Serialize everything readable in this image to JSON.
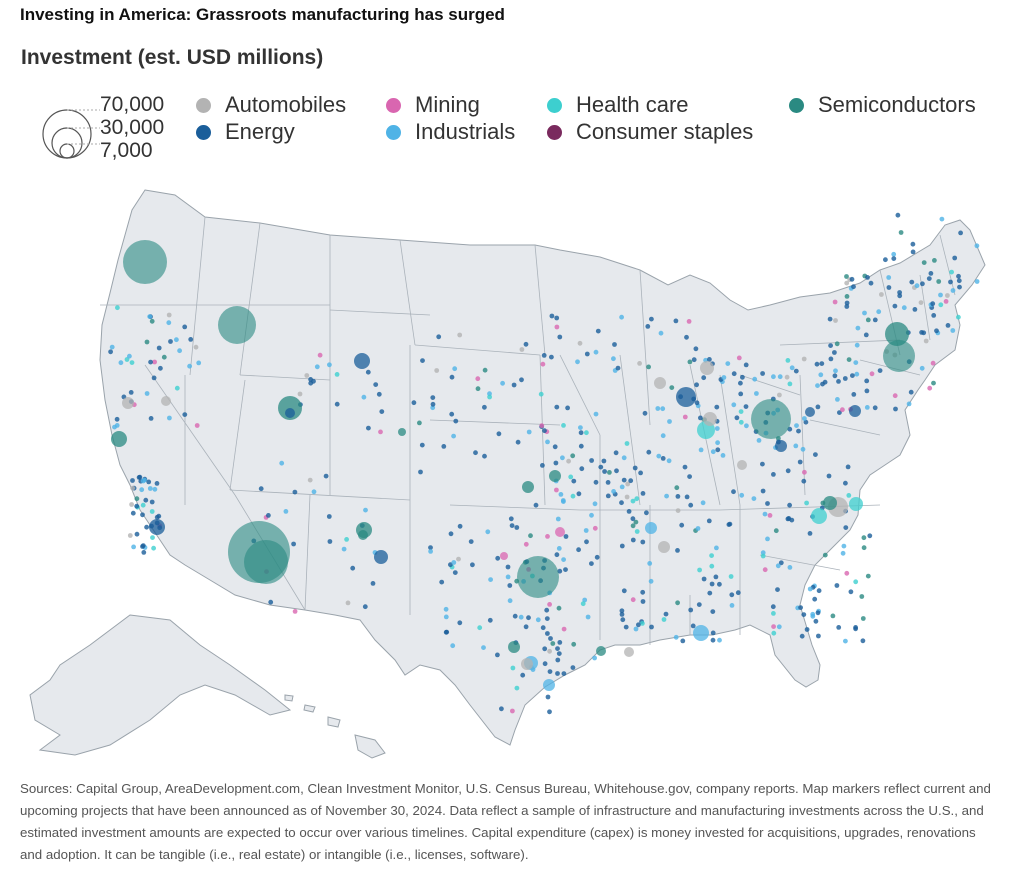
{
  "title": "Investing in America: Grassroots manufacturing has surged",
  "subtitle": "Investment (est. USD millions)",
  "size_legend": {
    "values": [
      "70,000",
      "30,000",
      "7,000"
    ]
  },
  "legend": [
    {
      "label": "Automobiles",
      "color": "#b3b3b3"
    },
    {
      "label": "Energy",
      "color": "#1a5e9a"
    },
    {
      "label": "Mining",
      "color": "#d966b0"
    },
    {
      "label": "Industrials",
      "color": "#4fb3e6"
    },
    {
      "label": "Health care",
      "color": "#3dcfcf"
    },
    {
      "label": "Consumer staples",
      "color": "#7a2a5e"
    },
    {
      "label": "Semiconductors",
      "color": "#2a8a82"
    }
  ],
  "map": {
    "land_color": "#e6e9ed",
    "border_color": "#9aa3ab"
  },
  "sources": "Sources: Capital Group, AreaDevelopment.com, Clean Investment Monitor, U.S. Census Bureau, Whitehouse.gov, company reports. Map markers reflect current and upcoming projects that have been announced as of November 30, 2024. Data reflect a sample of infrastructure and manufacturing investments across the U.S., and estimated investment amounts are expected to occur over various timelines. Capital expenditure (capex) is money invested for acquisitions, upgrades, renovations and adoption. It can be tangible (i.e., real estate) or intangible (i.e., licenses, software)."
}
